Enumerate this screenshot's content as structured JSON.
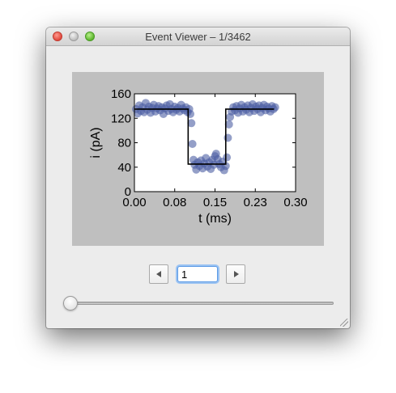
{
  "window": {
    "title": "Event Viewer – 1/3462"
  },
  "controls": {
    "prev_icon": "left-triangle-icon",
    "next_icon": "right-triangle-icon",
    "event_value": "1"
  },
  "slider": {
    "value": 1,
    "min": 1,
    "max": 3462
  },
  "colors": {
    "panel_background": "#bfbfbf",
    "scatter_color": "#4c5fa3",
    "fit_color": "#000000",
    "focus_ring": "#5b9ae6"
  },
  "chart_data": {
    "type": "scatter",
    "xlabel": "t (ms)",
    "ylabel": "i (pA)",
    "xlim": [
      0.0,
      0.3
    ],
    "ylim": [
      0,
      160
    ],
    "xticks": [
      "0.00",
      "0.08",
      "0.15",
      "0.23",
      "0.30"
    ],
    "yticks": [
      "0",
      "40",
      "80",
      "120",
      "160"
    ],
    "grid": false,
    "points": [
      [
        0.003,
        135
      ],
      [
        0.006,
        128
      ],
      [
        0.009,
        141
      ],
      [
        0.012,
        132
      ],
      [
        0.015,
        138
      ],
      [
        0.018,
        130
      ],
      [
        0.021,
        145
      ],
      [
        0.024,
        134
      ],
      [
        0.027,
        139
      ],
      [
        0.03,
        129
      ],
      [
        0.033,
        137
      ],
      [
        0.036,
        142
      ],
      [
        0.039,
        131
      ],
      [
        0.042,
        136
      ],
      [
        0.045,
        140
      ],
      [
        0.048,
        133
      ],
      [
        0.051,
        138
      ],
      [
        0.054,
        127
      ],
      [
        0.057,
        136
      ],
      [
        0.06,
        141
      ],
      [
        0.063,
        132
      ],
      [
        0.066,
        143
      ],
      [
        0.069,
        135
      ],
      [
        0.072,
        130
      ],
      [
        0.075,
        139
      ],
      [
        0.078,
        134
      ],
      [
        0.081,
        137
      ],
      [
        0.084,
        131
      ],
      [
        0.087,
        142
      ],
      [
        0.09,
        136
      ],
      [
        0.093,
        133
      ],
      [
        0.096,
        138
      ],
      [
        0.099,
        130
      ],
      [
        0.102,
        135
      ],
      [
        0.104,
        127
      ],
      [
        0.106,
        112
      ],
      [
        0.108,
        78
      ],
      [
        0.11,
        52
      ],
      [
        0.112,
        44
      ],
      [
        0.115,
        36
      ],
      [
        0.118,
        48
      ],
      [
        0.121,
        42
      ],
      [
        0.124,
        51
      ],
      [
        0.127,
        38
      ],
      [
        0.13,
        46
      ],
      [
        0.133,
        55
      ],
      [
        0.136,
        41
      ],
      [
        0.139,
        48
      ],
      [
        0.142,
        37
      ],
      [
        0.145,
        52
      ],
      [
        0.148,
        44
      ],
      [
        0.15,
        58
      ],
      [
        0.152,
        62
      ],
      [
        0.155,
        53
      ],
      [
        0.158,
        45
      ],
      [
        0.161,
        40
      ],
      [
        0.164,
        49
      ],
      [
        0.167,
        35
      ],
      [
        0.17,
        42
      ],
      [
        0.172,
        56
      ],
      [
        0.174,
        88
      ],
      [
        0.176,
        110
      ],
      [
        0.178,
        122
      ],
      [
        0.181,
        131
      ],
      [
        0.184,
        138
      ],
      [
        0.187,
        133
      ],
      [
        0.19,
        140
      ],
      [
        0.193,
        129
      ],
      [
        0.196,
        136
      ],
      [
        0.199,
        142
      ],
      [
        0.202,
        131
      ],
      [
        0.205,
        138
      ],
      [
        0.208,
        134
      ],
      [
        0.211,
        141
      ],
      [
        0.214,
        130
      ],
      [
        0.217,
        137
      ],
      [
        0.22,
        143
      ],
      [
        0.223,
        132
      ],
      [
        0.226,
        139
      ],
      [
        0.229,
        135
      ],
      [
        0.232,
        141
      ],
      [
        0.235,
        130
      ],
      [
        0.238,
        137
      ],
      [
        0.241,
        142
      ],
      [
        0.244,
        133
      ],
      [
        0.247,
        139
      ],
      [
        0.25,
        136
      ],
      [
        0.253,
        131
      ],
      [
        0.256,
        140
      ],
      [
        0.259,
        135
      ],
      [
        0.262,
        138
      ]
    ],
    "fit_line": [
      [
        0.0,
        135
      ],
      [
        0.1,
        135
      ],
      [
        0.1,
        45
      ],
      [
        0.17,
        45
      ],
      [
        0.17,
        135
      ],
      [
        0.26,
        135
      ]
    ]
  }
}
